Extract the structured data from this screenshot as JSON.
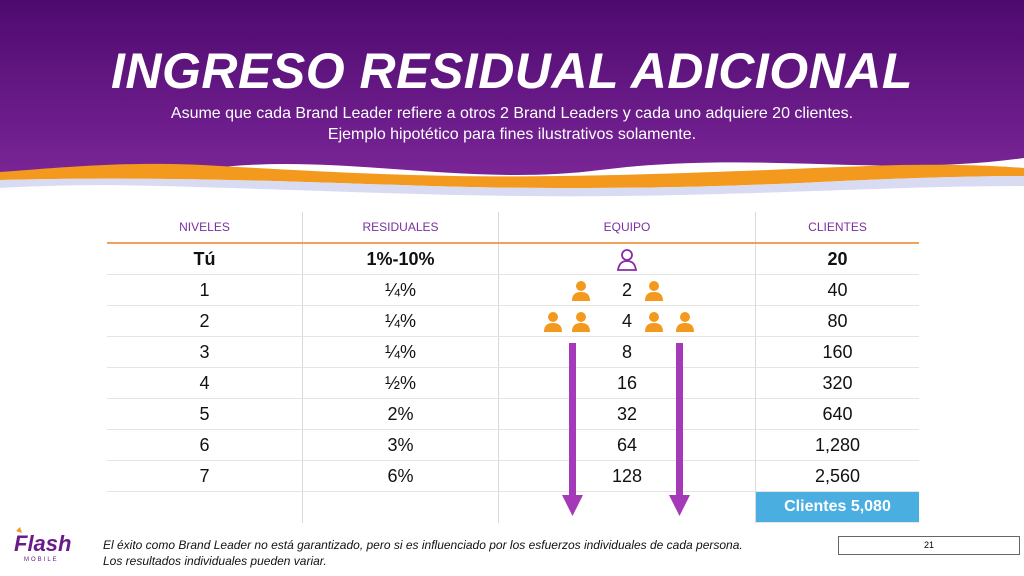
{
  "header": {
    "title": "INGRESO RESIDUAL ADICIONAL",
    "subtitle_line1": "Asume que cada Brand Leader refiere a otros 2 Brand Leaders y cada uno adquiere 20 clientes.",
    "subtitle_line2": "Ejemplo hipotético para fines ilustrativos solamente."
  },
  "table": {
    "headers": [
      "NIVELES",
      "RESIDUALES",
      "EQUIPO",
      "CLIENTES"
    ],
    "rows": [
      {
        "nivel": "Tú",
        "residual": "1%-10%",
        "equipo": "",
        "clientes": "20"
      },
      {
        "nivel": "1",
        "residual": "¼%",
        "equipo": "2",
        "clientes": "40"
      },
      {
        "nivel": "2",
        "residual": "¼%",
        "equipo": "4",
        "clientes": "80"
      },
      {
        "nivel": "3",
        "residual": "¼%",
        "equipo": "8",
        "clientes": "160"
      },
      {
        "nivel": "4",
        "residual": "½%",
        "equipo": "16",
        "clientes": "320"
      },
      {
        "nivel": "5",
        "residual": "2%",
        "equipo": "32",
        "clientes": "640"
      },
      {
        "nivel": "6",
        "residual": "3%",
        "equipo": "64",
        "clientes": "1,280"
      },
      {
        "nivel": "7",
        "residual": "6%",
        "equipo": "128",
        "clientes": "2,560"
      }
    ],
    "total": "Clientes 5,080"
  },
  "footer": {
    "logo_text": "Flash",
    "logo_sub": "MOBILE",
    "disclaimer_line1": "El éxito como Brand Leader no está garantizado, pero si es influenciado por los esfuerzos individuales  de cada persona.",
    "disclaimer_line2": "Los resultados individuales pueden variar.",
    "page_number": "21"
  },
  "colors": {
    "purple": "#5a0f7e",
    "orange": "#f39a1e",
    "blue": "#4aaee1",
    "arrow": "#a43ab8"
  },
  "icons": [
    "person-outline-icon",
    "person-icon",
    "arrow-down-icon"
  ]
}
